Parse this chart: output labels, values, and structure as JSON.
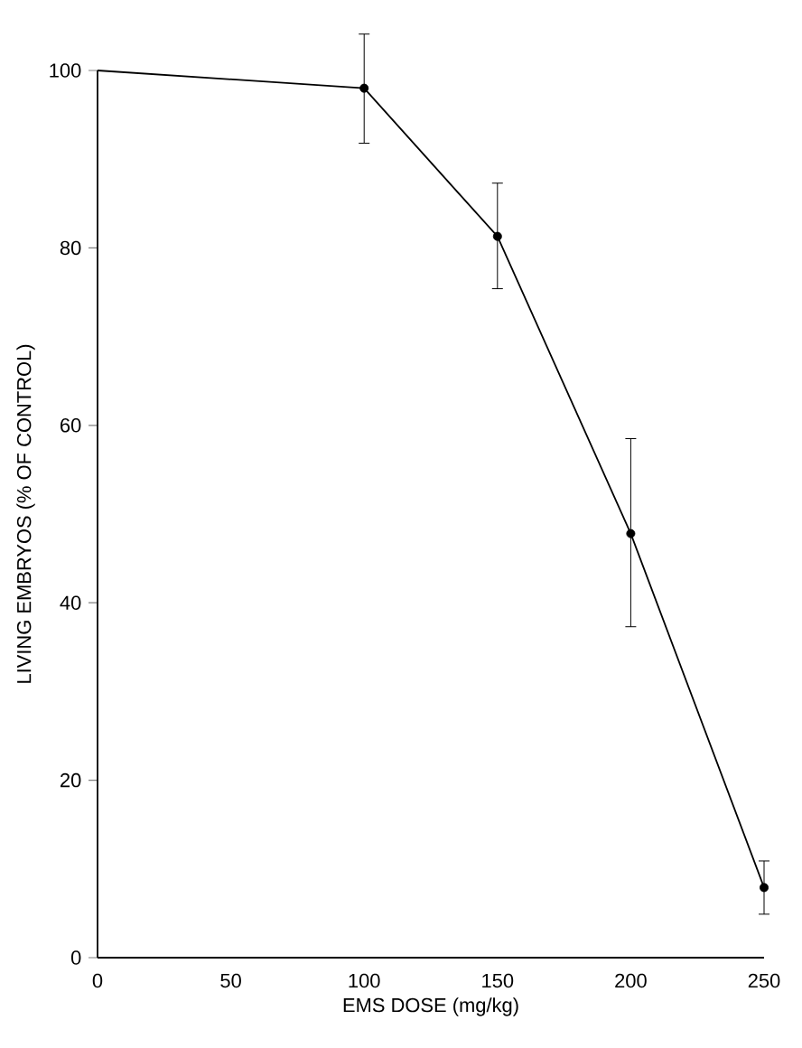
{
  "chart_data": {
    "type": "line",
    "xlabel": "EMS DOSE (mg/kg)",
    "ylabel": "LIVING EMBRYOS (% OF CONTROL)",
    "xlim": [
      0,
      250
    ],
    "ylim": [
      0,
      100
    ],
    "xticks": [
      0,
      50,
      100,
      150,
      200,
      250
    ],
    "yticks": [
      0,
      20,
      40,
      60,
      80,
      100
    ],
    "series": [
      {
        "color": "#000000",
        "marker": "none",
        "line_style": "solid",
        "x": [
          0,
          100,
          150,
          200,
          250
        ],
        "values": [
          100,
          98,
          81.3,
          47.8,
          7.9
        ]
      },
      {
        "type": "scatter",
        "color": "#000000",
        "marker": "circle",
        "x": [
          100,
          150,
          200,
          250
        ],
        "values": [
          98,
          81.3,
          47.8,
          7.9
        ],
        "errors": [
          [
            91.8,
            104.1
          ],
          [
            75.4,
            87.3
          ],
          [
            37.3,
            58.5
          ],
          [
            4.9,
            10.9
          ]
        ]
      }
    ]
  }
}
